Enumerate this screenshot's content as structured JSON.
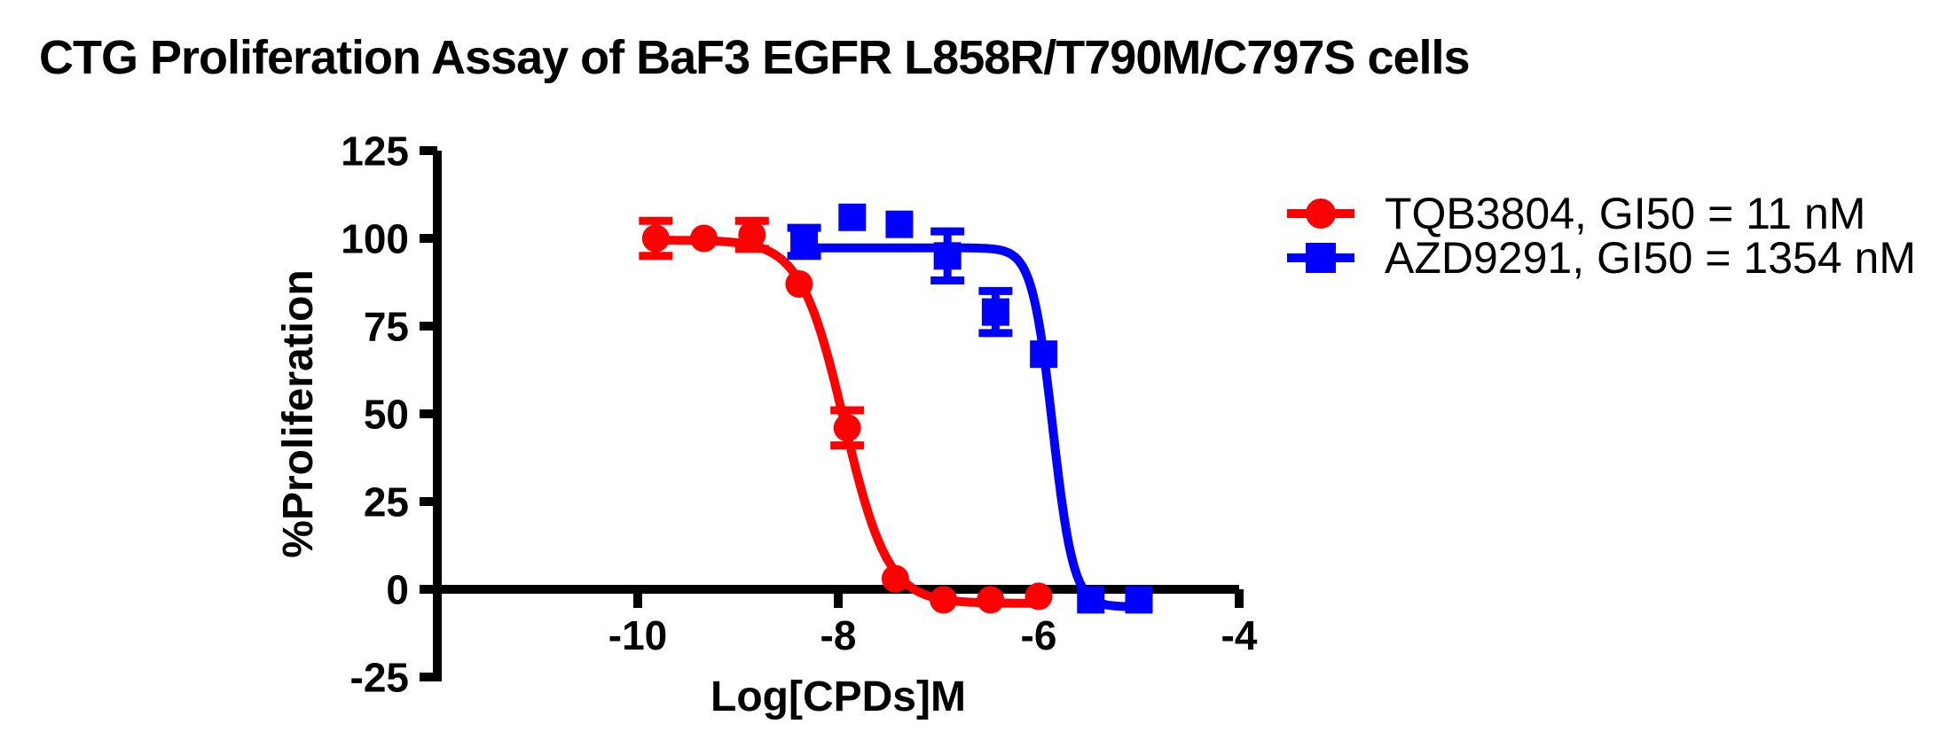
{
  "title": "CTG Proliferation Assay of BaF3 EGFR L858R/T790M/C797S cells",
  "colors": {
    "background": "#FFFFFF",
    "axis": "#000000",
    "text": "#000000",
    "tqb3804_red": "#FF0000",
    "azd9291_blue": "#0000FF"
  },
  "chart_data": {
    "type": "scatter",
    "subtype": "dose-response-curve-with-error-bars",
    "title": "CTG Proliferation Assay of BaF3 EGFR L858R/T790M/C797S cells",
    "xlabel": "Log[CPDs]M",
    "ylabel": "%Proliferation",
    "xlim": [
      -12,
      -4
    ],
    "ylim": [
      -25,
      125
    ],
    "x_ticks": [
      -10,
      -8,
      -6,
      -4
    ],
    "y_ticks": [
      -25,
      0,
      25,
      50,
      75,
      100,
      125
    ],
    "grid": false,
    "legend_position": "right-of-plot-top",
    "series": [
      {
        "name": "TQB3804, GI50 = 11 nM",
        "compound": "TQB3804",
        "gi50": "11 nM",
        "color": "#FF0000",
        "marker": "circle",
        "points": [
          {
            "x": -9.82,
            "y": 100,
            "err": 5
          },
          {
            "x": -9.34,
            "y": 100,
            "err": 0
          },
          {
            "x": -8.86,
            "y": 101,
            "err": 4
          },
          {
            "x": -8.39,
            "y": 87,
            "err": 0
          },
          {
            "x": -7.91,
            "y": 46,
            "err": 5
          },
          {
            "x": -7.43,
            "y": 3,
            "err": 0
          },
          {
            "x": -6.95,
            "y": -3,
            "err": 0
          },
          {
            "x": -6.48,
            "y": -3,
            "err": 0
          },
          {
            "x": -6.0,
            "y": -2,
            "err": 0
          }
        ],
        "fit": {
          "top": 99.5,
          "bottom": -4.0,
          "log_gi50": -7.94,
          "hill": 2.0
        }
      },
      {
        "name": "AZD9291, GI50 = 1354 nM",
        "compound": "AZD9291",
        "gi50": "1354 nM",
        "color": "#0000FF",
        "marker": "square",
        "points": [
          {
            "x": -8.34,
            "y": 99,
            "err": 4
          },
          {
            "x": -7.86,
            "y": 106,
            "err": 0
          },
          {
            "x": -7.39,
            "y": 104,
            "err": 0
          },
          {
            "x": -6.91,
            "y": 95,
            "err": 7
          },
          {
            "x": -6.43,
            "y": 79,
            "err": 6
          },
          {
            "x": -5.95,
            "y": 67,
            "err": 0
          },
          {
            "x": -5.48,
            "y": -3,
            "err": 0
          },
          {
            "x": -5.0,
            "y": -3,
            "err": 0
          }
        ],
        "fit": {
          "top": 97.3,
          "bottom": -5.0,
          "log_gi50": -5.86,
          "hill": 4.2
        }
      }
    ]
  }
}
